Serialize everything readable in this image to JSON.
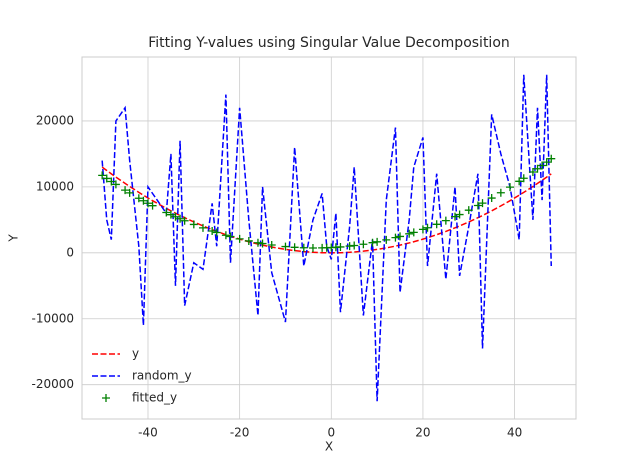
{
  "chart_data": {
    "type": "line",
    "title": "Fitting Y-values using Singular Value Decomposition",
    "xlabel": "X",
    "ylabel": "Y",
    "x": [
      -50,
      -49,
      -48,
      -47,
      -45,
      -44,
      -42,
      -41,
      -40,
      -39,
      -36,
      -35,
      -34,
      -33,
      -32,
      -30,
      -28,
      -26,
      -25,
      -23,
      -22,
      -20,
      -18,
      -16,
      -15,
      -13,
      -10,
      -8,
      -6,
      -4,
      -2,
      -1,
      0,
      1,
      2,
      4,
      5,
      7,
      9,
      10,
      12,
      14,
      15,
      17,
      18,
      20,
      21,
      23,
      25,
      27,
      28,
      30,
      32,
      33,
      35,
      37,
      39,
      41,
      42,
      44,
      45,
      46,
      47,
      48
    ],
    "series": [
      {
        "name": "y",
        "color": "#ff0000",
        "linestyle": "dashed",
        "marker": null,
        "values": [
          13000,
          12485,
          11981,
          11487,
          10530,
          10067,
          9173,
          8741,
          8320,
          7909,
          6739,
          6370,
          6011,
          5663,
          5325,
          4680,
          4077,
          3515,
          3250,
          2751,
          2517,
          2080,
          1685,
          1331,
          1170,
          879,
          520,
          333,
          187,
          83,
          21,
          5,
          0,
          5,
          21,
          83,
          130,
          255,
          421,
          520,
          749,
          1019,
          1170,
          1503,
          1685,
          2080,
          2293,
          2751,
          3250,
          3791,
          4077,
          4680,
          5325,
          5663,
          6370,
          7119,
          7909,
          8741,
          9173,
          10067,
          10530,
          11003,
          11487,
          11981
        ]
      },
      {
        "name": "random_y",
        "color": "#0000ff",
        "linestyle": "dashed",
        "marker": null,
        "values": [
          14000,
          5000,
          2000,
          20000,
          22000,
          14000,
          1000,
          -11000,
          10000,
          9000,
          6000,
          15000,
          -5000,
          17000,
          -8000,
          -1500,
          -2500,
          7500,
          1000,
          24000,
          -1500,
          22000,
          5000,
          -9500,
          10000,
          -3000,
          -10500,
          16000,
          -2000,
          5000,
          9000,
          1000,
          -1000,
          6000,
          -9000,
          4000,
          13000,
          -9500,
          2000,
          -22500,
          8000,
          19000,
          -6000,
          5000,
          13000,
          17500,
          -2000,
          12000,
          -4000,
          10000,
          -3500,
          4000,
          12000,
          -14500,
          21000,
          15000,
          10000,
          2000,
          27000,
          5000,
          22000,
          8000,
          27000,
          -2000
        ]
      },
      {
        "name": "fitted_y",
        "color": "#008000",
        "linestyle": null,
        "marker": "+",
        "values": [
          11750,
          11281,
          10822,
          10374,
          9508,
          9090,
          8284,
          7897,
          7520,
          7153,
          6114,
          5788,
          5472,
          5166,
          4870,
          4310,
          3790,
          3312,
          3088,
          2670,
          2476,
          2120,
          1804,
          1530,
          1408,
          1194,
          950,
          838,
          768,
          738,
          748,
          769,
          800,
          841,
          892,
          1026,
          1108,
          1302,
          1537,
          1670,
          1966,
          2304,
          2488,
          2886,
          3100,
          3560,
          3805,
          4326,
          4888,
          5490,
          5806,
          6470,
          7174,
          7542,
          8308,
          9114,
          9961,
          10849,
          11308,
          12258,
          12748,
          13248,
          13758,
          14278
        ]
      }
    ],
    "xlim": [
      -54.4,
      53.4
    ],
    "ylim": [
      -25200,
      29700
    ],
    "xticks": [
      -40,
      -20,
      0,
      20,
      40
    ],
    "yticks": [
      -20000,
      -10000,
      0,
      10000,
      20000
    ],
    "grid": true,
    "legend": "lower left"
  }
}
